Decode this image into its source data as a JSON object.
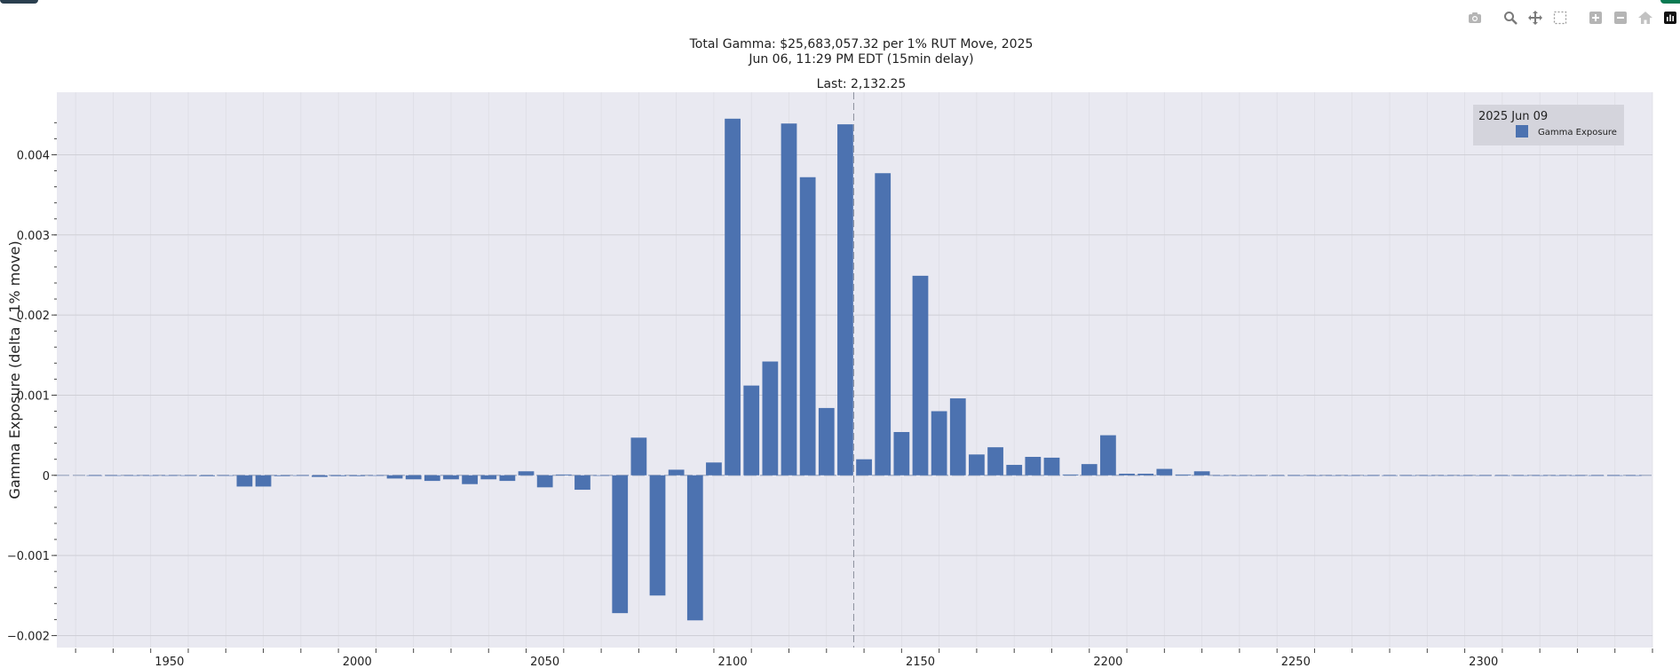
{
  "modebar": {
    "icons": [
      "camera-icon",
      "zoom-icon",
      "pan-icon",
      "box-select-icon",
      "zoom-in-icon",
      "zoom-out-icon",
      "home-icon",
      "plotly-logo-icon"
    ]
  },
  "colors": {
    "bar": "#4c72b0",
    "plot_bg": "#e9e9f1",
    "grid": "#cfcfd6",
    "zero_line": "#a9b3c9",
    "last_line": "#8a8f9c",
    "legend_bg": "#d4d4dc"
  },
  "chart_data": {
    "type": "bar",
    "title": "Total Gamma: $25,683,057.32 per 1% RUT Move, 2025",
    "subtitle": "Jun 06, 11:29 PM EDT (15min delay)",
    "annotation": "Last: 2,132.25",
    "last_price": 2132.25,
    "xlabel": "",
    "ylabel": "Gamma Exposure (delta / 1% move)",
    "xlim": [
      1920,
      2345
    ],
    "ylim": [
      -0.00215,
      0.00478
    ],
    "x_ticks": [
      1950,
      2000,
      2050,
      2100,
      2150,
      2200,
      2250,
      2300
    ],
    "x_tick_labels": [
      "1950",
      "2000",
      "2050",
      "2100",
      "2150",
      "2200",
      "2250",
      "2300"
    ],
    "y_ticks": [
      -0.002,
      -0.001,
      0,
      0.001,
      0.002,
      0.003,
      0.004
    ],
    "y_tick_labels": [
      "−0.002",
      "−0.001",
      "0",
      "0.001",
      "0.002",
      "0.003",
      "0.004"
    ],
    "grid": true,
    "legend": {
      "title": "2025 Jun 09",
      "position": "top-right"
    },
    "series": [
      {
        "name": "Gamma Exposure",
        "x": [
          1930,
          1935,
          1940,
          1945,
          1950,
          1955,
          1960,
          1965,
          1970,
          1975,
          1980,
          1985,
          1990,
          1995,
          2000,
          2005,
          2010,
          2015,
          2020,
          2025,
          2030,
          2035,
          2040,
          2045,
          2050,
          2055,
          2060,
          2065,
          2070,
          2075,
          2080,
          2085,
          2090,
          2095,
          2100,
          2105,
          2110,
          2115,
          2120,
          2125,
          2130,
          2135,
          2140,
          2145,
          2150,
          2155,
          2160,
          2165,
          2170,
          2175,
          2180,
          2185,
          2190,
          2195,
          2200,
          2205,
          2210,
          2215,
          2220,
          2225,
          2230,
          2235,
          2240,
          2245,
          2250,
          2255,
          2260,
          2265,
          2270,
          2275,
          2280,
          2285,
          2290,
          2295,
          2300,
          2305,
          2310,
          2315,
          2320,
          2325,
          2330,
          2335,
          2340
        ],
        "values": [
          0,
          0,
          0,
          0,
          0,
          -5e-06,
          -1e-05,
          0,
          -0.00014,
          -0.00014,
          -1e-05,
          0,
          -2e-05,
          -1e-05,
          -1e-05,
          0,
          -4e-05,
          -5e-05,
          -7e-05,
          -5e-05,
          -0.00011,
          -5e-05,
          -7e-05,
          5e-05,
          -0.00015,
          1e-05,
          -0.00018,
          0,
          -0.00172,
          0.00047,
          -0.0015,
          7e-05,
          -0.00181,
          0.00016,
          0.00445,
          0.00112,
          0.00142,
          0.00439,
          0.00372,
          0.00084,
          0.00438,
          0.0002,
          0.00377,
          0.00054,
          0.00249,
          0.0008,
          0.00096,
          0.00026,
          0.00035,
          0.00013,
          0.00023,
          0.00022,
          1e-05,
          0.00014,
          0.0005,
          2e-05,
          2e-05,
          8e-05,
          1e-05,
          5e-05,
          0,
          0,
          0,
          0,
          0,
          0,
          0,
          0,
          0,
          0,
          0,
          0,
          0,
          0,
          0,
          0,
          0,
          0,
          0,
          0,
          0,
          0,
          0
        ]
      }
    ]
  }
}
